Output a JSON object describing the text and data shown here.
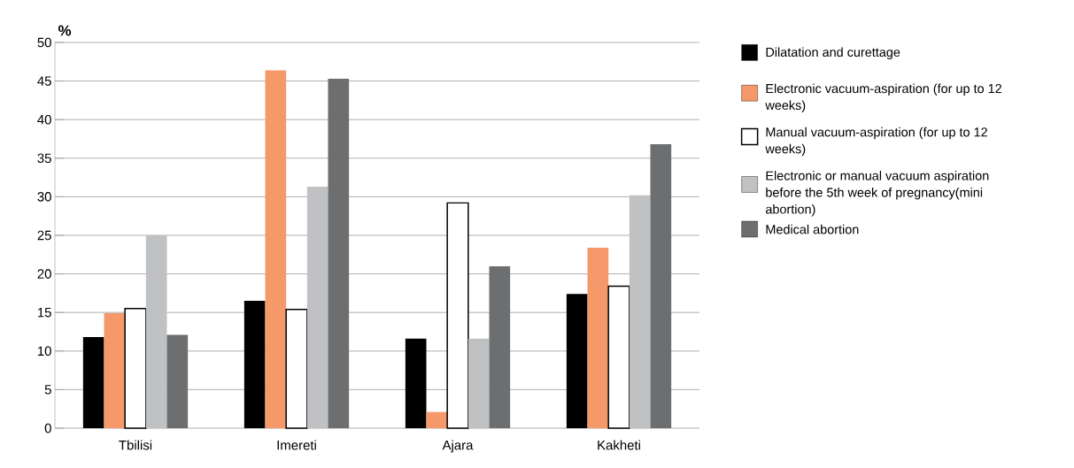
{
  "chart_data": {
    "type": "bar",
    "ylabel": "%",
    "categories": [
      "Tbilisi",
      "Imereti",
      "Ajara",
      "Kakheti"
    ],
    "series": [
      {
        "name": "Dilatation and curettage",
        "color": "#000000",
        "values": [
          11.8,
          16.5,
          11.6,
          17.4
        ]
      },
      {
        "name": "Electronic vacuum-aspiration (for up to 12 weeks)",
        "color": "#f5996a",
        "values": [
          14.9,
          46.4,
          2.1,
          23.4
        ]
      },
      {
        "name": "Manual vacuum-aspiration (for up to 12 weeks)",
        "color": "#ffffff",
        "values": [
          15.5,
          15.4,
          29.2,
          18.4
        ]
      },
      {
        "name": "Electronic or manual vacuum aspiration before the 5th week of pregnancy(mini abortion)",
        "color": "#c0c1c3",
        "values": [
          25.0,
          31.3,
          11.6,
          30.2
        ]
      },
      {
        "name": "Medical abortion",
        "color": "#6d6e70",
        "values": [
          12.1,
          45.3,
          21.0,
          36.8
        ]
      }
    ],
    "ylim": [
      0,
      50
    ],
    "yticks": [
      0,
      5,
      10,
      15,
      20,
      25,
      30,
      35,
      40,
      45,
      50
    ],
    "grid": "y",
    "legend": "right"
  }
}
